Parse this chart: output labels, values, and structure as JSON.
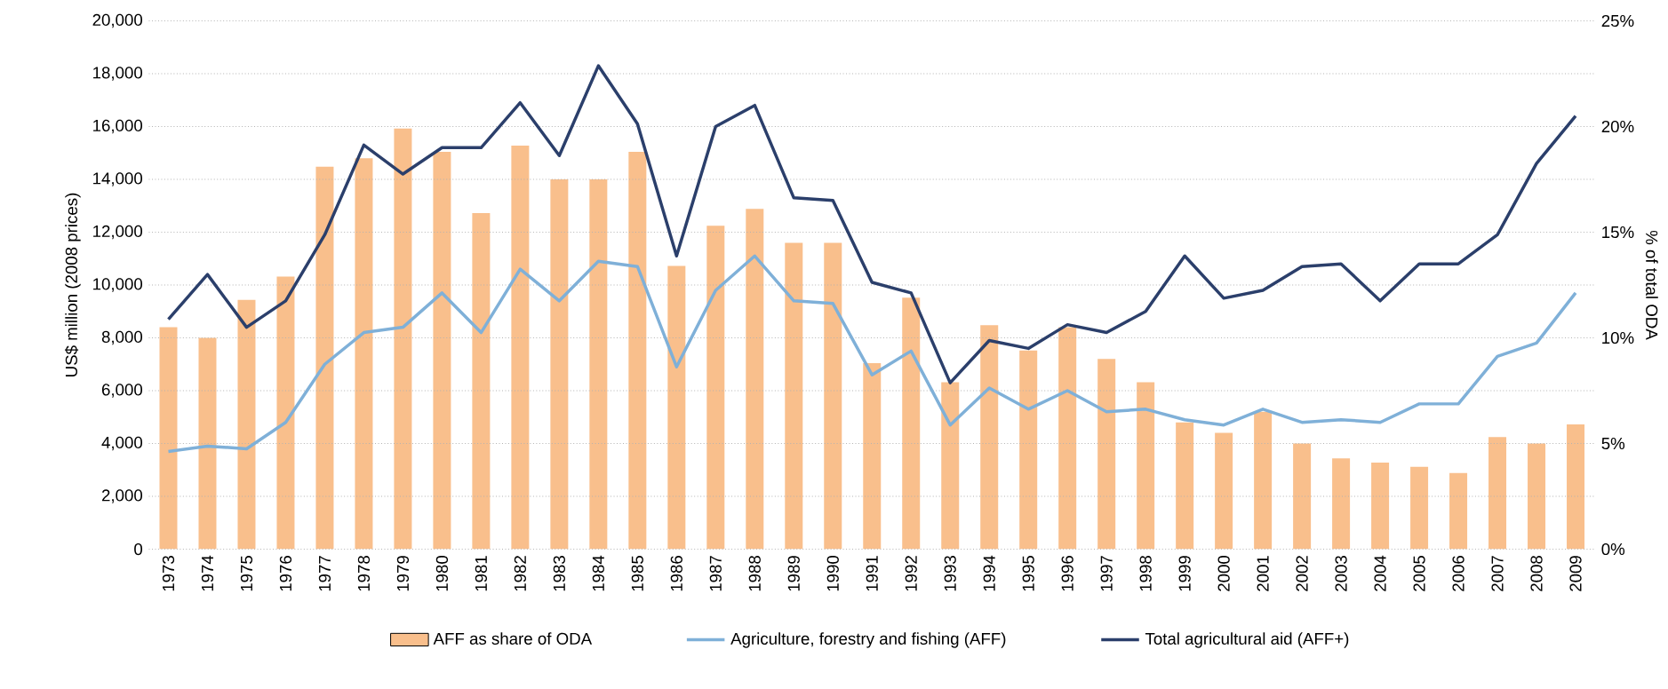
{
  "chart_data": {
    "type": "line",
    "categories": [
      "1973",
      "1974",
      "1975",
      "1976",
      "1977",
      "1978",
      "1979",
      "1980",
      "1981",
      "1982",
      "1983",
      "1984",
      "1985",
      "1986",
      "1987",
      "1988",
      "1989",
      "1990",
      "1991",
      "1992",
      "1993",
      "1994",
      "1995",
      "1996",
      "1997",
      "1998",
      "1999",
      "2000",
      "2001",
      "2002",
      "2003",
      "2004",
      "2005",
      "2006",
      "2007",
      "2008",
      "2009"
    ],
    "ylabel": "US$ million (2008 prices)",
    "y2label": "% of total ODA",
    "ylim": [
      0,
      20000
    ],
    "yticks": [
      0,
      {
        "value": 2000,
        "label": "2,000"
      },
      {
        "value": 4000,
        "label": "4,000"
      },
      {
        "value": 6000,
        "label": "6,000"
      },
      {
        "value": 8000,
        "label": "8,000"
      },
      {
        "value": 10000,
        "label": "10,000"
      },
      {
        "value": 12000,
        "label": "12,000"
      },
      {
        "value": 14000,
        "label": "14,000"
      },
      {
        "value": 16000,
        "label": "16,000"
      },
      {
        "value": 18000,
        "label": "18,000"
      },
      {
        "value": 20000,
        "label": "20,000"
      }
    ],
    "y2lim": [
      0,
      25
    ],
    "y2ticks": [
      {
        "value": 0,
        "label": "0%"
      },
      {
        "value": 5,
        "label": "5%"
      },
      {
        "value": 10,
        "label": "10%"
      },
      {
        "value": 15,
        "label": "15%"
      },
      {
        "value": 20,
        "label": "20%"
      },
      {
        "value": 25,
        "label": "25%"
      }
    ],
    "grid": "y",
    "legend": "bottom",
    "series": [
      {
        "name": "AFF as share of ODA",
        "type": "bar",
        "axis": "y2",
        "color": "#f9bf8c",
        "values": [
          10.5,
          10,
          11.8,
          12.9,
          18.1,
          18.5,
          19.9,
          18.8,
          15.9,
          19.1,
          17.5,
          17.5,
          18.8,
          13.4,
          15.3,
          16.1,
          14.5,
          14.5,
          8.8,
          11.9,
          7.9,
          10.6,
          9.4,
          10.5,
          9,
          7.9,
          6,
          5.5,
          6.5,
          5,
          4.3,
          4.1,
          3.9,
          3.6,
          5.3,
          5,
          5.9
        ]
      },
      {
        "name": "Agriculture, forestry and fishing (AFF)",
        "color": "#7fb0d8",
        "values": [
          3700,
          3900,
          3800,
          4800,
          7000,
          8200,
          8400,
          9700,
          8200,
          10600,
          9400,
          10900,
          10700,
          6900,
          9800,
          11100,
          9400,
          9300,
          6600,
          7500,
          4700,
          6100,
          5300,
          6000,
          5200,
          5300,
          4900,
          4700,
          5300,
          4800,
          4900,
          4800,
          5500,
          5500,
          7300,
          7800,
          9700
        ]
      },
      {
        "name": "Total agricultural aid (AFF+)",
        "color": "#2b3f6b",
        "values": [
          8700,
          10400,
          8400,
          9400,
          11900,
          15300,
          14200,
          15200,
          15200,
          16900,
          14900,
          18300,
          16100,
          11100,
          16000,
          16800,
          13300,
          13200,
          10100,
          9700,
          6300,
          7900,
          7600,
          8500,
          8200,
          9000,
          11100,
          9500,
          9800,
          10700,
          10800,
          9400,
          10800,
          10800,
          11900,
          14600,
          16400
        ]
      }
    ]
  }
}
